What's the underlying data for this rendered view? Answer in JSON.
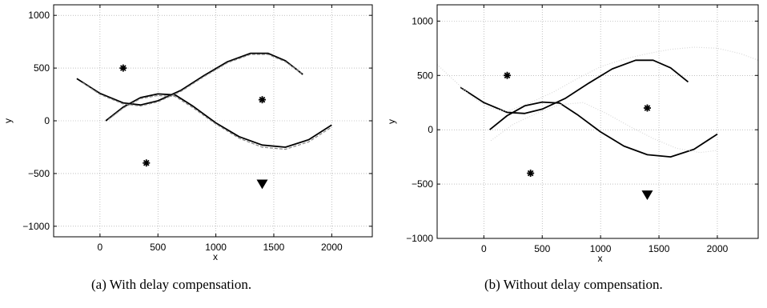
{
  "chart_data": [
    {
      "type": "line",
      "caption": "(a)  With delay compensation.",
      "xlabel": "x",
      "ylabel": "y",
      "xlim": [
        -400,
        2350
      ],
      "ylim": [
        -1100,
        1100
      ],
      "xticks": [
        0,
        500,
        1000,
        1500,
        2000
      ],
      "yticks": [
        -1000,
        -500,
        0,
        500,
        1000
      ],
      "grid": true,
      "series": [
        {
          "style": "solid",
          "color": "#000000",
          "points": [
            [
              -200,
              400
            ],
            [
              0,
              260
            ],
            [
              200,
              170
            ],
            [
              350,
              150
            ],
            [
              500,
              190
            ],
            [
              700,
              290
            ],
            [
              900,
              430
            ],
            [
              1100,
              560
            ],
            [
              1300,
              640
            ],
            [
              1450,
              640
            ],
            [
              1600,
              570
            ],
            [
              1750,
              440
            ]
          ]
        },
        {
          "style": "solid",
          "color": "#000000",
          "points": [
            [
              50,
              0
            ],
            [
              200,
              130
            ],
            [
              350,
              220
            ],
            [
              500,
              255
            ],
            [
              650,
              245
            ],
            [
              800,
              140
            ],
            [
              1000,
              -20
            ],
            [
              1200,
              -150
            ],
            [
              1400,
              -230
            ],
            [
              1600,
              -250
            ],
            [
              1800,
              -180
            ],
            [
              2000,
              -40
            ]
          ]
        },
        {
          "style": "dashed",
          "color": "#888888",
          "points": [
            [
              -150,
              360
            ],
            [
              0,
              250
            ],
            [
              200,
              160
            ],
            [
              350,
              140
            ],
            [
              500,
              180
            ],
            [
              700,
              280
            ],
            [
              900,
              420
            ],
            [
              1100,
              550
            ],
            [
              1300,
              630
            ],
            [
              1450,
              630
            ],
            [
              1600,
              560
            ],
            [
              1740,
              450
            ]
          ]
        },
        {
          "style": "dashed",
          "color": "#888888",
          "points": [
            [
              70,
              10
            ],
            [
              200,
              120
            ],
            [
              350,
              210
            ],
            [
              500,
              240
            ],
            [
              650,
              230
            ],
            [
              800,
              125
            ],
            [
              1000,
              -30
            ],
            [
              1200,
              -165
            ],
            [
              1400,
              -250
            ],
            [
              1600,
              -270
            ],
            [
              1800,
              -200
            ],
            [
              2000,
              -60
            ]
          ]
        }
      ],
      "markers": [
        {
          "symbol": "star",
          "x": 200,
          "y": 500
        },
        {
          "symbol": "star",
          "x": 1400,
          "y": 200
        },
        {
          "symbol": "star",
          "x": 400,
          "y": -400
        },
        {
          "symbol": "triangle-down",
          "x": 1400,
          "y": -600
        }
      ]
    },
    {
      "type": "line",
      "caption": "(b)  Without delay compensation.",
      "xlabel": "x",
      "ylabel": "y",
      "xlim": [
        -400,
        2350
      ],
      "ylim": [
        -1000,
        1150
      ],
      "xticks": [
        0,
        500,
        1000,
        1500,
        2000
      ],
      "yticks": [
        -1000,
        -500,
        0,
        500,
        1000
      ],
      "grid": true,
      "series": [
        {
          "style": "solid",
          "color": "#000000",
          "points": [
            [
              -200,
              390
            ],
            [
              0,
              250
            ],
            [
              200,
              160
            ],
            [
              350,
              150
            ],
            [
              500,
              190
            ],
            [
              700,
              290
            ],
            [
              900,
              430
            ],
            [
              1100,
              560
            ],
            [
              1300,
              640
            ],
            [
              1450,
              640
            ],
            [
              1600,
              570
            ],
            [
              1750,
              440
            ]
          ]
        },
        {
          "style": "solid",
          "color": "#000000",
          "points": [
            [
              50,
              0
            ],
            [
              200,
              130
            ],
            [
              350,
              220
            ],
            [
              500,
              255
            ],
            [
              650,
              245
            ],
            [
              800,
              140
            ],
            [
              1000,
              -20
            ],
            [
              1200,
              -150
            ],
            [
              1400,
              -230
            ],
            [
              1600,
              -250
            ],
            [
              1800,
              -180
            ],
            [
              2000,
              -40
            ]
          ]
        },
        {
          "style": "dotted",
          "color": "#d8d8d8",
          "points": [
            [
              -400,
              600
            ],
            [
              -250,
              450
            ],
            [
              -100,
              300
            ],
            [
              50,
              200
            ],
            [
              200,
              170
            ],
            [
              400,
              250
            ],
            [
              600,
              350
            ],
            [
              800,
              470
            ],
            [
              1000,
              580
            ],
            [
              1200,
              650
            ],
            [
              1400,
              700
            ],
            [
              1600,
              740
            ],
            [
              1800,
              760
            ],
            [
              2000,
              750
            ],
            [
              2200,
              700
            ],
            [
              2350,
              640
            ]
          ]
        },
        {
          "style": "dotted",
          "color": "#d8d8d8",
          "points": [
            [
              60,
              -100
            ],
            [
              250,
              50
            ],
            [
              450,
              150
            ],
            [
              650,
              230
            ],
            [
              850,
              250
            ],
            [
              1050,
              150
            ],
            [
              1250,
              30
            ],
            [
              1450,
              -80
            ],
            [
              1650,
              -170
            ],
            [
              1850,
              -210
            ],
            [
              2000,
              -190
            ]
          ]
        }
      ],
      "markers": [
        {
          "symbol": "star",
          "x": 200,
          "y": 500
        },
        {
          "symbol": "star",
          "x": 1400,
          "y": 200
        },
        {
          "symbol": "star",
          "x": 400,
          "y": -400
        },
        {
          "symbol": "triangle-down",
          "x": 1400,
          "y": -600
        }
      ]
    }
  ]
}
